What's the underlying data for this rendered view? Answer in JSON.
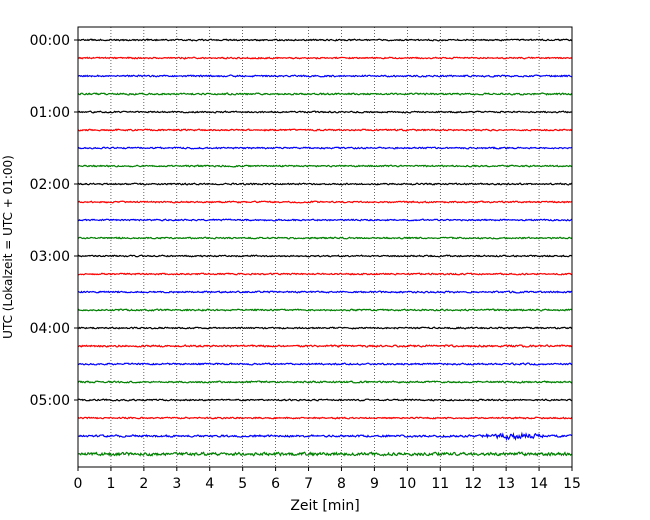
{
  "chart_data": {
    "type": "line",
    "xlabel": "Zeit  [min]",
    "ylabel": "UTC (Lokalzeit = UTC + 01:00)",
    "xlim": [
      0,
      15
    ],
    "x_ticks": [
      "0",
      "1",
      "2",
      "3",
      "4",
      "5",
      "6",
      "7",
      "8",
      "9",
      "10",
      "11",
      "12",
      "13",
      "14",
      "15"
    ],
    "y_tick_labels": [
      "00:00",
      "01:00",
      "02:00",
      "03:00",
      "04:00",
      "05:00"
    ],
    "trace_interval_minutes": 15,
    "trace_count": 24,
    "trace_colors": [
      "#000000",
      "#ff0000",
      "#0000ff",
      "#008000"
    ],
    "grid": "vertical dotted lines at each minute",
    "traces": [
      {
        "time": "00:00",
        "color": "#000000",
        "amplitude": 1.0
      },
      {
        "time": "00:15",
        "color": "#ff0000",
        "amplitude": 1.0
      },
      {
        "time": "00:30",
        "color": "#0000ff",
        "amplitude": 1.1
      },
      {
        "time": "00:45",
        "color": "#008000",
        "amplitude": 1.1
      },
      {
        "time": "01:00",
        "color": "#000000",
        "amplitude": 1.0
      },
      {
        "time": "01:15",
        "color": "#ff0000",
        "amplitude": 1.0
      },
      {
        "time": "01:30",
        "color": "#0000ff",
        "amplitude": 1.0
      },
      {
        "time": "01:45",
        "color": "#008000",
        "amplitude": 1.0
      },
      {
        "time": "02:00",
        "color": "#000000",
        "amplitude": 1.0
      },
      {
        "time": "02:15",
        "color": "#ff0000",
        "amplitude": 1.0
      },
      {
        "time": "02:30",
        "color": "#0000ff",
        "amplitude": 1.0
      },
      {
        "time": "02:45",
        "color": "#008000",
        "amplitude": 1.0
      },
      {
        "time": "03:00",
        "color": "#000000",
        "amplitude": 1.0
      },
      {
        "time": "03:15",
        "color": "#ff0000",
        "amplitude": 1.0
      },
      {
        "time": "03:30",
        "color": "#0000ff",
        "amplitude": 1.1
      },
      {
        "time": "03:45",
        "color": "#008000",
        "amplitude": 1.1
      },
      {
        "time": "04:00",
        "color": "#000000",
        "amplitude": 1.0
      },
      {
        "time": "04:15",
        "color": "#ff0000",
        "amplitude": 1.2
      },
      {
        "time": "04:30",
        "color": "#0000ff",
        "amplitude": 1.1
      },
      {
        "time": "04:45",
        "color": "#008000",
        "amplitude": 1.1
      },
      {
        "time": "05:00",
        "color": "#000000",
        "amplitude": 1.0
      },
      {
        "time": "05:15",
        "color": "#ff0000",
        "amplitude": 1.0
      },
      {
        "time": "05:30",
        "color": "#0000ff",
        "amplitude": 1.3,
        "event": {
          "start_min": 12,
          "end_min": 15,
          "amplitude": 4.5
        }
      },
      {
        "time": "05:45",
        "color": "#008000",
        "amplitude": 2.0
      }
    ]
  }
}
